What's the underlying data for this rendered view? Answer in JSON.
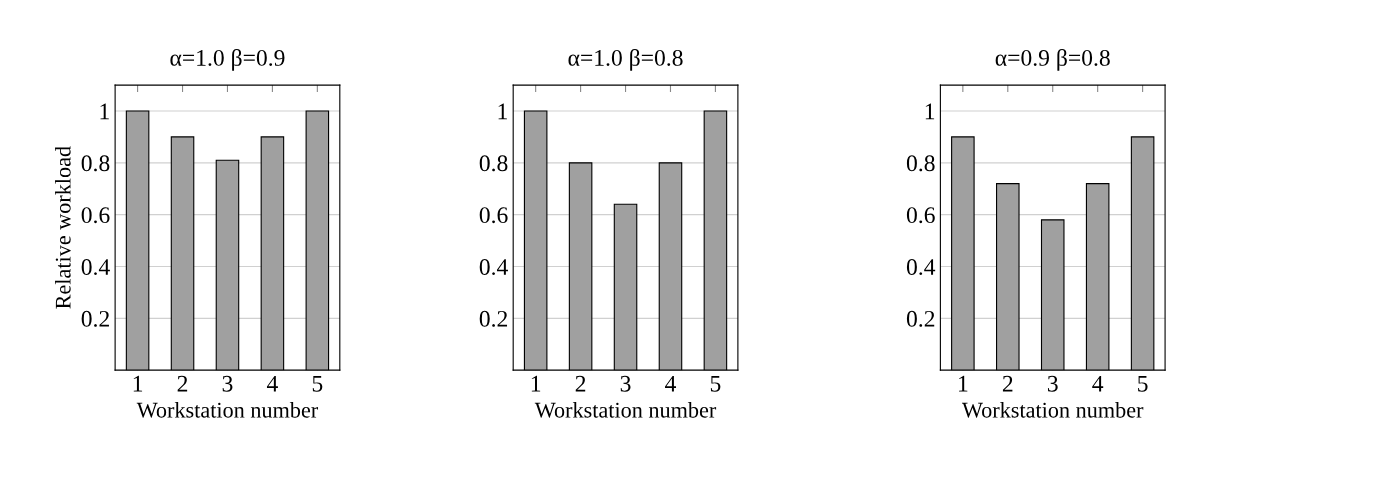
{
  "chart_data": [
    {
      "type": "bar",
      "title": "α=1.0 β=0.9",
      "xlabel": "Workstation number",
      "ylabel": "Relative workload",
      "x": [
        1,
        2,
        3,
        4,
        5
      ],
      "values": [
        1,
        0.9,
        0.81,
        0.9,
        1
      ],
      "color": "#a0a0a0",
      "xlim": [
        0.5,
        5.5
      ],
      "xticks": [
        1,
        2,
        3,
        4,
        5
      ],
      "ylim": [
        0,
        1.1
      ],
      "yticks": [
        0.2,
        0.4,
        0.6,
        0.8,
        1
      ],
      "grid": "y"
    },
    {
      "type": "bar",
      "title": "α=1.0 β=0.8",
      "xlabel": "Workstation number",
      "x": [
        1,
        2,
        3,
        4,
        5
      ],
      "values": [
        1,
        0.8,
        0.64,
        0.8,
        1
      ],
      "color": "#a0a0a0",
      "xlim": [
        0.5,
        5.5
      ],
      "xticks": [
        1,
        2,
        3,
        4,
        5
      ],
      "ylim": [
        0,
        1.1
      ],
      "yticks": [
        0.2,
        0.4,
        0.6,
        0.8,
        1
      ],
      "grid": "y"
    },
    {
      "type": "bar",
      "title": "α=0.9 β=0.8",
      "xlabel": "Workstation number",
      "x": [
        1,
        2,
        3,
        4,
        5
      ],
      "values": [
        0.9,
        0.72,
        0.58,
        0.72,
        0.9
      ],
      "color": "#a0a0a0",
      "xlim": [
        0.5,
        5.5
      ],
      "xticks": [
        1,
        2,
        3,
        4,
        5
      ],
      "ylim": [
        0,
        1.1
      ],
      "yticks": [
        0.2,
        0.4,
        0.6,
        0.8,
        1
      ],
      "grid": "y"
    }
  ]
}
